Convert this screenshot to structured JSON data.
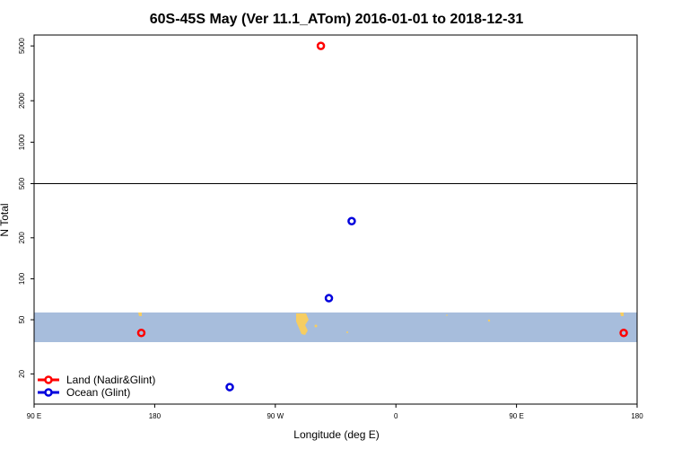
{
  "chart_data": {
    "type": "scatter",
    "title": "60S-45S May (Ver 11.1_ATom)   2016-01-01 to 2018-12-31",
    "xlabel": "Longitude (deg E)",
    "ylabel": "N Total",
    "x_ticks": [
      {
        "value": 90,
        "label": "90 E"
      },
      {
        "value": 180,
        "label": "180"
      },
      {
        "value": 270,
        "label": "90 W"
      },
      {
        "value": 360,
        "label": "0"
      },
      {
        "value": 450,
        "label": "90 E"
      },
      {
        "value": 540,
        "label": "180"
      }
    ],
    "xlim": [
      90,
      540
    ],
    "lower_panel": {
      "scale": "log",
      "ylim": [
        12,
        500
      ],
      "y_ticks": [
        20,
        50,
        100,
        200,
        500
      ]
    },
    "upper_panel": {
      "scale": "log",
      "ylim": [
        500,
        6000
      ],
      "y_ticks": [
        1000,
        2000,
        5000
      ]
    },
    "land_band": {
      "lat_range": "60S-45S",
      "color": "#a7bddc",
      "land_color": "#f6cd62"
    },
    "series": [
      {
        "name": "Land (Nadir&Glint)",
        "color": "#ff0000",
        "points": [
          {
            "x": 304,
            "y": 5000
          },
          {
            "x": 170,
            "y": 40
          },
          {
            "x": 530,
            "y": 40
          }
        ]
      },
      {
        "name": "Ocean (Glint)",
        "color": "#0000dd",
        "points": [
          {
            "x": 327,
            "y": 265
          },
          {
            "x": 310,
            "y": 72
          },
          {
            "x": 236,
            "y": 16
          }
        ]
      }
    ],
    "legend_position": "bottom-left",
    "grid": false
  }
}
